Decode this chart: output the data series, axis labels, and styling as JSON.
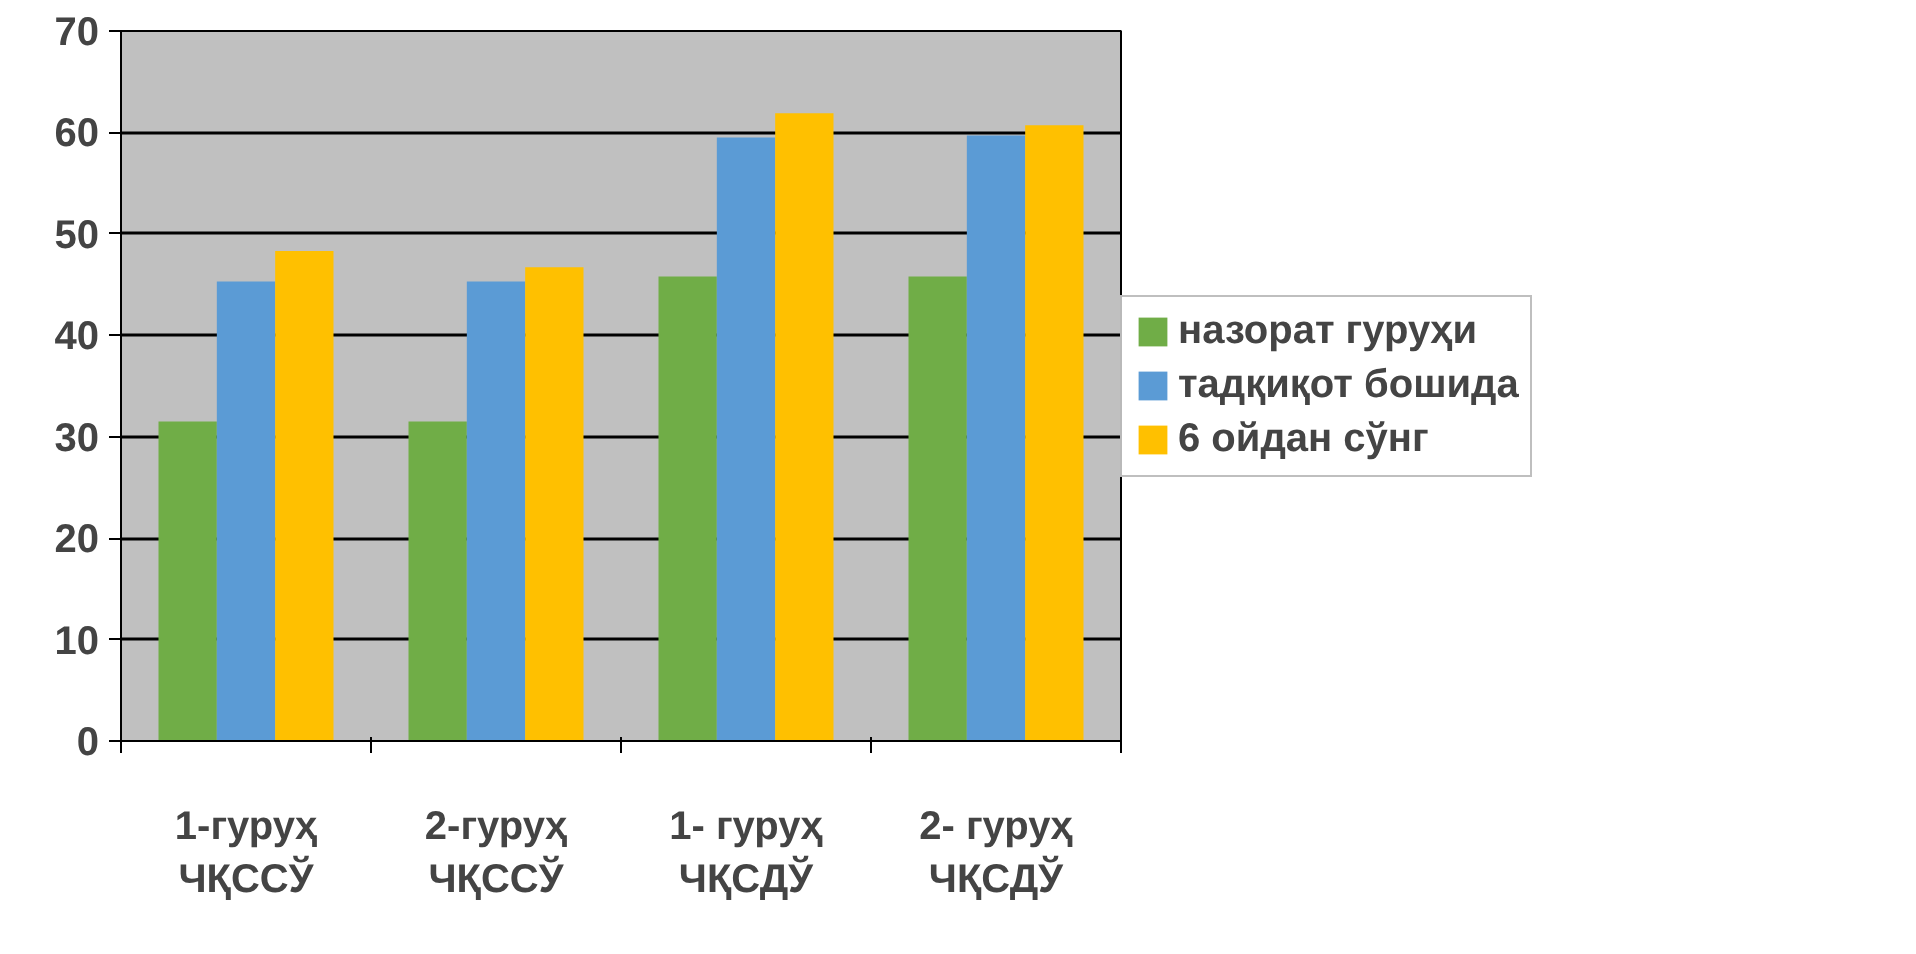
{
  "chart_data": {
    "type": "bar",
    "categories": [
      "1-гуруҳ\nЧҚССЎ",
      "2-гуруҳ\nЧҚССЎ",
      "1- гуруҳ\nЧҚСДЎ",
      "2- гуруҳ\nЧҚСДЎ"
    ],
    "series": [
      {
        "name": "назорат гуруҳи",
        "color": "#70ad47",
        "values": [
          31.5,
          31.5,
          45.8,
          45.8
        ]
      },
      {
        "name": "тадқиқот бошида",
        "color": "#5b9bd5",
        "values": [
          45.3,
          45.3,
          59.5,
          59.7
        ]
      },
      {
        "name": "6 ойдан сўнг",
        "color": "#ffc000",
        "values": [
          48.3,
          46.7,
          61.9,
          60.7
        ]
      }
    ],
    "ylim": [
      0,
      70
    ],
    "yticks": [
      0,
      10,
      20,
      30,
      40,
      50,
      60,
      70
    ],
    "grid": "y",
    "legend": "right"
  }
}
